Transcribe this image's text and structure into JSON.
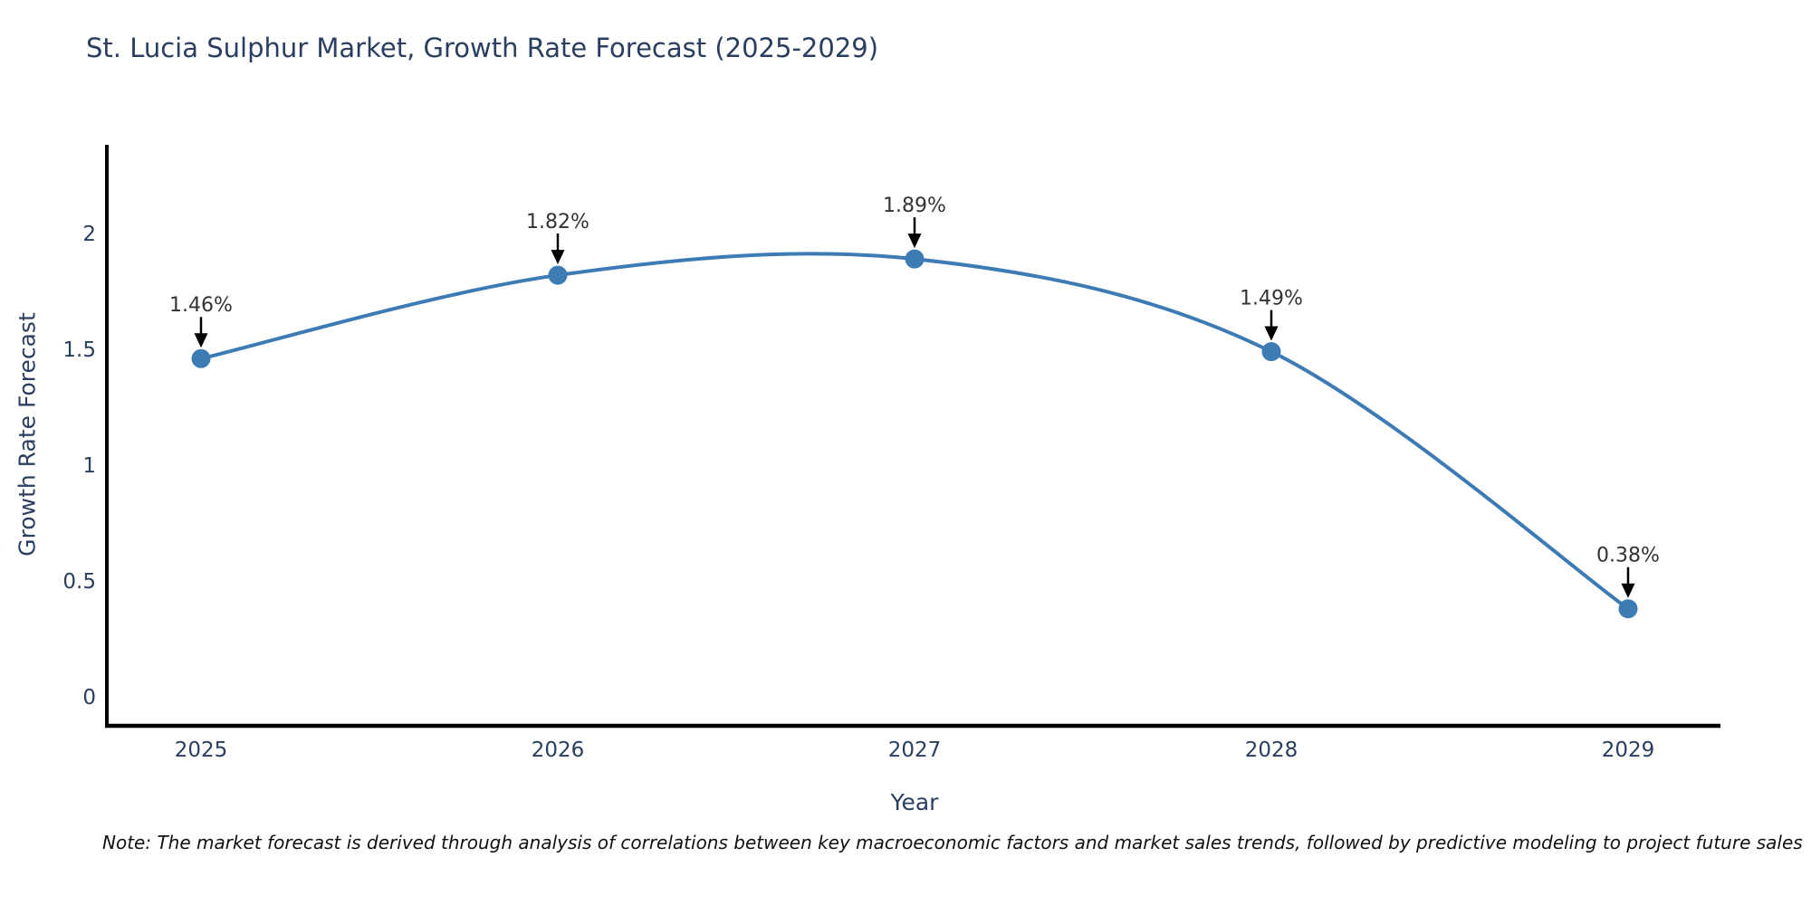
{
  "chart_data": {
    "type": "line",
    "title": "St. Lucia Sulphur Market, Growth Rate Forecast (2025-2029)",
    "xlabel": "Year",
    "ylabel": "Growth Rate Forecast",
    "categories": [
      "2025",
      "2026",
      "2027",
      "2028",
      "2029"
    ],
    "values": [
      1.46,
      1.82,
      1.89,
      1.49,
      0.38
    ],
    "point_labels": [
      "1.46%",
      "1.82%",
      "1.89%",
      "1.49%",
      "0.38%"
    ],
    "yticks": [
      0,
      0.5,
      1,
      1.5,
      2
    ],
    "ytick_labels": [
      "0",
      "0.5",
      "1",
      "1.5",
      "2"
    ],
    "ylim": [
      0,
      2.4
    ],
    "line_shape": "spline",
    "grid": false,
    "legend_position": "none",
    "colors": {
      "line": "#3d7bb5",
      "marker": "#3d7bb5",
      "axis": "#000000",
      "tick_text": "#2a3f5f",
      "title_text": "#2a3f5f",
      "annotation_text": "#333333",
      "annotation_arrow": "#000000",
      "background": "#ffffff"
    },
    "note": "Note: The market forecast is derived through analysis of correlations between key macroeconomic factors and market sales trends, followed by predictive modeling to project future sales"
  }
}
